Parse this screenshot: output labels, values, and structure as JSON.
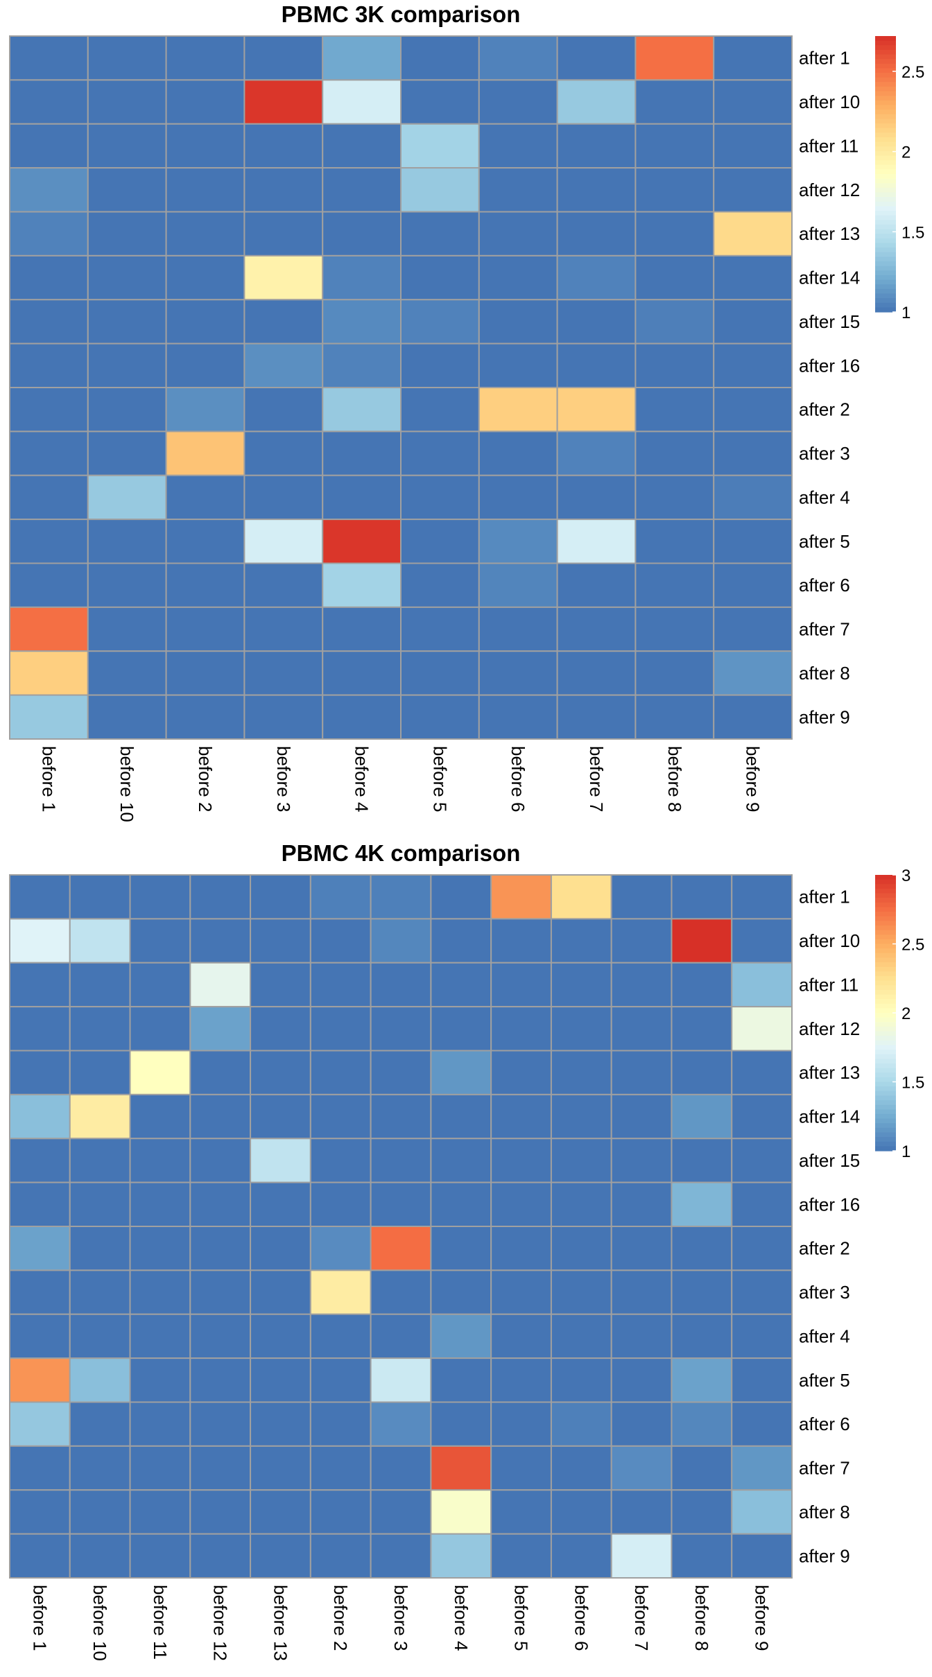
{
  "chart_data": [
    {
      "type": "heatmap",
      "title": "PBMC 3K comparison",
      "row_labels": [
        "after 1",
        "after 10",
        "after 11",
        "after 12",
        "after 13",
        "after 14",
        "after 15",
        "after 16",
        "after 2",
        "after 3",
        "after 4",
        "after 5",
        "after 6",
        "after 7",
        "after 8",
        "after 9"
      ],
      "col_labels": [
        "before 1",
        "before 10",
        "before 2",
        "before 3",
        "before 4",
        "before 5",
        "before 6",
        "before 7",
        "before 8",
        "before 9"
      ],
      "values": [
        [
          1.0,
          1.0,
          1.0,
          1.0,
          1.2,
          1.0,
          1.05,
          1.0,
          2.5,
          1.0
        ],
        [
          1.0,
          1.0,
          1.0,
          2.7,
          1.6,
          1.0,
          1.0,
          1.35,
          1.0,
          1.0
        ],
        [
          1.0,
          1.0,
          1.0,
          1.0,
          1.0,
          1.4,
          1.0,
          1.0,
          1.0,
          1.0
        ],
        [
          1.1,
          1.0,
          1.0,
          1.0,
          1.0,
          1.35,
          1.0,
          1.0,
          1.0,
          1.0
        ],
        [
          1.05,
          1.0,
          1.0,
          1.0,
          1.0,
          1.0,
          1.0,
          1.0,
          1.0,
          2.1
        ],
        [
          1.0,
          1.0,
          1.0,
          1.95,
          1.05,
          1.0,
          1.0,
          1.05,
          1.0,
          1.0
        ],
        [
          1.0,
          1.0,
          1.0,
          1.0,
          1.08,
          1.05,
          1.0,
          1.0,
          1.04,
          1.0
        ],
        [
          1.0,
          1.0,
          1.0,
          1.1,
          1.05,
          1.0,
          1.0,
          1.0,
          1.0,
          1.0
        ],
        [
          1.0,
          1.0,
          1.1,
          1.0,
          1.35,
          1.0,
          2.15,
          2.15,
          1.0,
          1.0
        ],
        [
          1.0,
          1.0,
          2.2,
          1.0,
          1.0,
          1.0,
          1.0,
          1.05,
          1.0,
          1.0
        ],
        [
          1.0,
          1.35,
          1.0,
          1.0,
          1.0,
          1.0,
          1.0,
          1.0,
          1.0,
          1.03
        ],
        [
          1.0,
          1.0,
          1.0,
          1.6,
          2.7,
          1.0,
          1.08,
          1.6,
          1.0,
          1.0
        ],
        [
          1.0,
          1.0,
          1.0,
          1.0,
          1.4,
          1.0,
          1.06,
          1.0,
          1.0,
          1.0
        ],
        [
          2.5,
          1.0,
          1.0,
          1.0,
          1.0,
          1.0,
          1.0,
          1.0,
          1.0,
          1.0
        ],
        [
          2.15,
          1.0,
          1.0,
          1.0,
          1.0,
          1.0,
          1.0,
          1.0,
          1.0,
          1.12
        ],
        [
          1.35,
          1.0,
          1.0,
          1.0,
          1.0,
          1.0,
          1.0,
          1.0,
          1.0,
          1.0
        ]
      ],
      "color_range": [
        1.0,
        2.72
      ],
      "legend_ticks": [
        1,
        1.5,
        2,
        2.5
      ],
      "legend_tick_labels": [
        "1",
        "1.5",
        "2",
        "2.5"
      ],
      "legend_placement": "top-right",
      "colors": {
        "low": "#4575b4",
        "mid": "#ffffbf",
        "high": "#d73027",
        "grid": "#a0a0a0"
      }
    },
    {
      "type": "heatmap",
      "title": "PBMC 4K comparison",
      "row_labels": [
        "after 1",
        "after 10",
        "after 11",
        "after 12",
        "after 13",
        "after 14",
        "after 15",
        "after 16",
        "after 2",
        "after 3",
        "after 4",
        "after 5",
        "after 6",
        "after 7",
        "after 8",
        "after 9"
      ],
      "col_labels": [
        "before 1",
        "before 10",
        "before 11",
        "before 12",
        "before 13",
        "before 2",
        "before 3",
        "before 4",
        "before 5",
        "before 6",
        "before 7",
        "before 8",
        "before 9"
      ],
      "values": [
        [
          1.0,
          1.0,
          1.0,
          1.0,
          1.0,
          1.05,
          1.05,
          1.0,
          2.6,
          2.25,
          1.0,
          1.0,
          1.0
        ],
        [
          1.75,
          1.6,
          1.0,
          1.0,
          1.0,
          1.0,
          1.08,
          1.0,
          1.0,
          1.0,
          1.0,
          3.0,
          1.0
        ],
        [
          1.0,
          1.0,
          1.0,
          1.8,
          1.0,
          1.0,
          1.0,
          1.0,
          1.0,
          1.0,
          1.0,
          1.0,
          1.35
        ],
        [
          1.0,
          1.0,
          1.0,
          1.2,
          1.0,
          1.0,
          1.0,
          1.0,
          1.0,
          1.0,
          1.0,
          1.0,
          1.85
        ],
        [
          1.0,
          1.0,
          2.0,
          1.0,
          1.0,
          1.0,
          1.0,
          1.15,
          1.0,
          1.0,
          1.0,
          1.0,
          1.0
        ],
        [
          1.35,
          2.15,
          1.0,
          1.0,
          1.0,
          1.0,
          1.0,
          1.0,
          1.0,
          1.0,
          1.0,
          1.15,
          1.0
        ],
        [
          1.0,
          1.0,
          1.0,
          1.0,
          1.6,
          1.0,
          1.0,
          1.0,
          1.0,
          1.0,
          1.0,
          1.0,
          1.0
        ],
        [
          1.0,
          1.0,
          1.0,
          1.0,
          1.0,
          1.0,
          1.0,
          1.0,
          1.0,
          1.0,
          1.0,
          1.3,
          1.0
        ],
        [
          1.2,
          1.0,
          1.0,
          1.0,
          1.0,
          1.1,
          2.75,
          1.0,
          1.0,
          1.0,
          1.0,
          1.0,
          1.0
        ],
        [
          1.0,
          1.0,
          1.0,
          1.0,
          1.0,
          2.15,
          1.0,
          1.0,
          1.0,
          1.0,
          1.0,
          1.0,
          1.0
        ],
        [
          1.0,
          1.0,
          1.0,
          1.0,
          1.0,
          1.0,
          1.0,
          1.15,
          1.0,
          1.0,
          1.0,
          1.0,
          1.0
        ],
        [
          2.6,
          1.35,
          1.0,
          1.0,
          1.0,
          1.0,
          1.65,
          1.0,
          1.0,
          1.0,
          1.0,
          1.2,
          1.0
        ],
        [
          1.4,
          1.0,
          1.0,
          1.0,
          1.0,
          1.0,
          1.1,
          1.0,
          1.0,
          1.05,
          1.0,
          1.08,
          1.0
        ],
        [
          1.0,
          1.0,
          1.0,
          1.0,
          1.0,
          1.0,
          1.0,
          2.85,
          1.0,
          1.0,
          1.1,
          1.0,
          1.15
        ],
        [
          1.0,
          1.0,
          1.0,
          1.0,
          1.0,
          1.0,
          1.0,
          1.95,
          1.0,
          1.0,
          1.0,
          1.0,
          1.35
        ],
        [
          1.0,
          1.0,
          1.0,
          1.0,
          1.0,
          1.0,
          1.0,
          1.4,
          1.0,
          1.0,
          1.7,
          1.0,
          1.0
        ]
      ],
      "color_range": [
        1.0,
        3.0
      ],
      "legend_ticks": [
        1,
        1.5,
        2,
        2.5,
        3
      ],
      "legend_tick_labels": [
        "1",
        "1.5",
        "2",
        "2.5",
        "3"
      ],
      "legend_placement": "top-right",
      "colors": {
        "low": "#4575b4",
        "mid": "#ffffbf",
        "high": "#d73027",
        "grid": "#a0a0a0"
      }
    }
  ]
}
